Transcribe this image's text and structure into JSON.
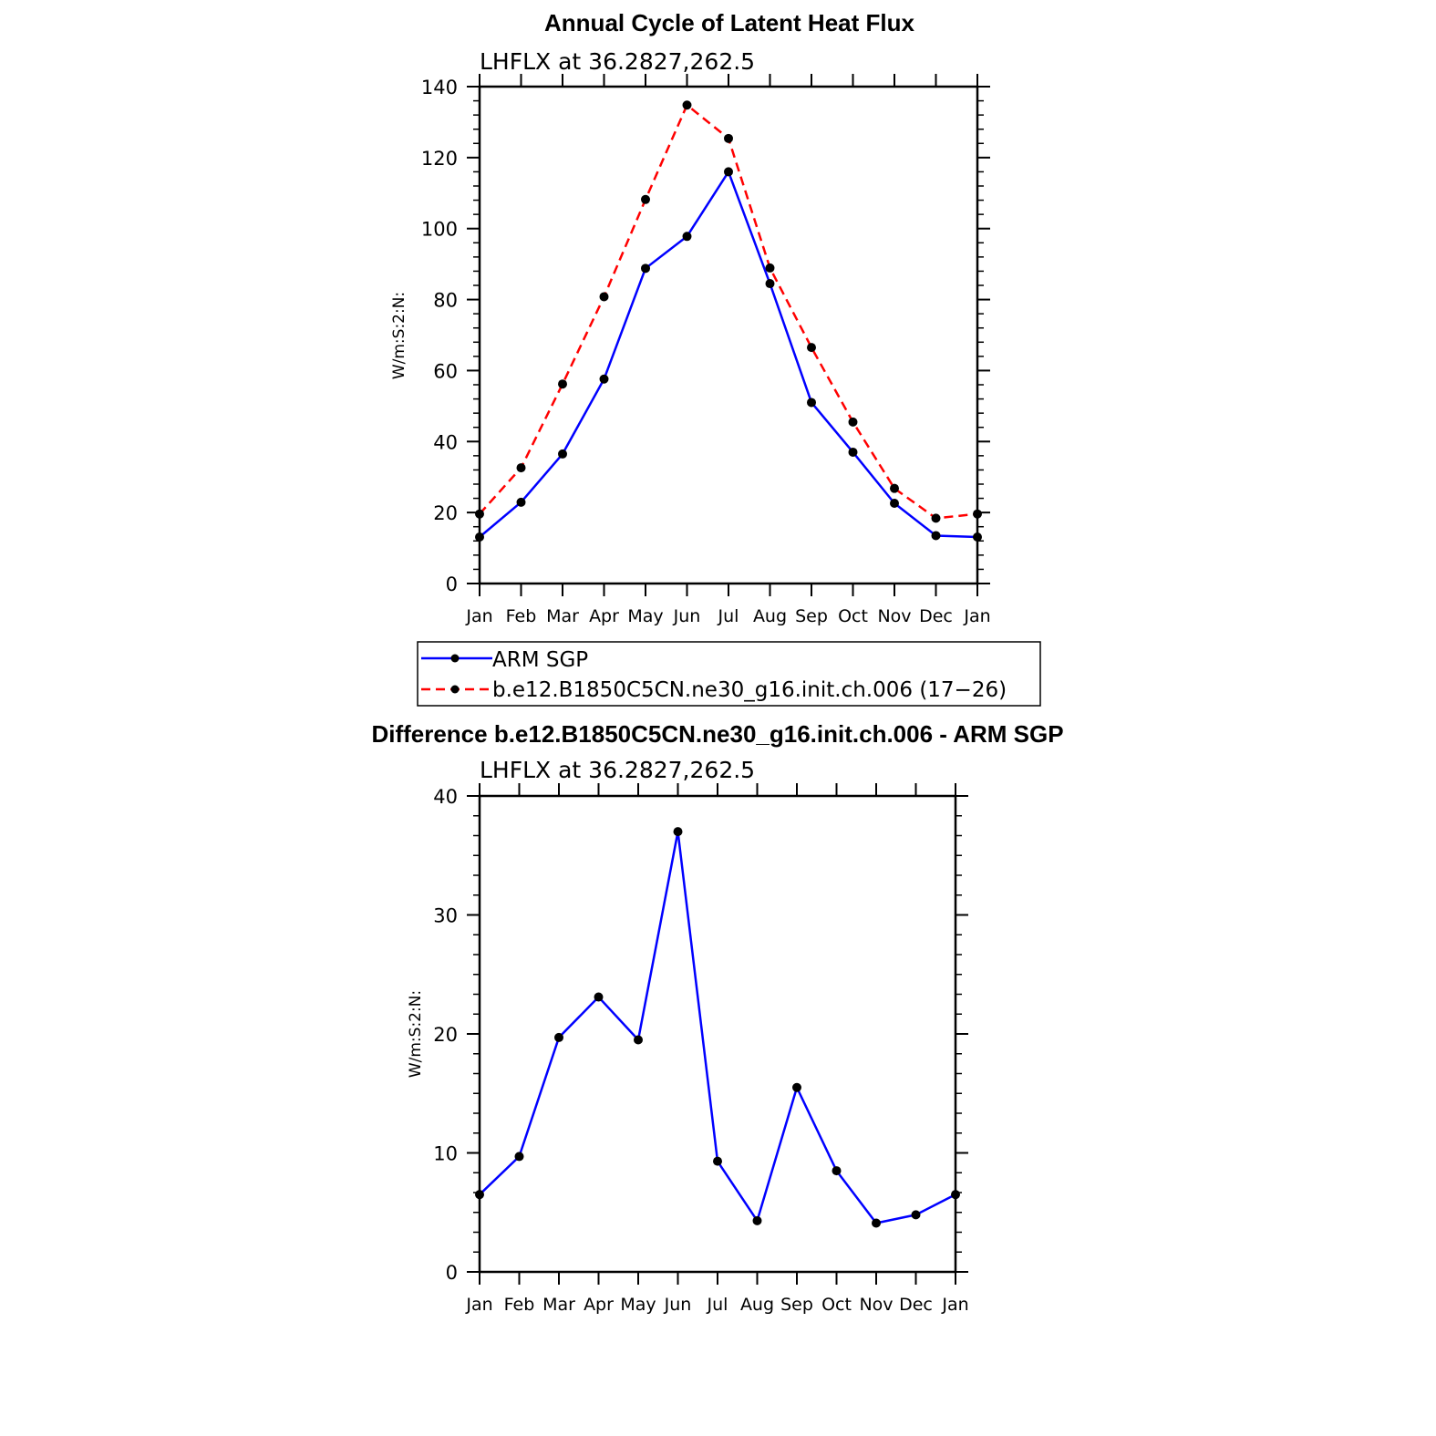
{
  "chart_data": [
    {
      "type": "line",
      "title": "Annual Cycle of Latent Heat Flux",
      "subtitle": "LHFLX at 36.2827,262.5",
      "ylabel": "W/m:S:2:N:",
      "xlabel": "",
      "categories": [
        "Jan",
        "Feb",
        "Mar",
        "Apr",
        "May",
        "Jun",
        "Jul",
        "Aug",
        "Sep",
        "Oct",
        "Nov",
        "Dec",
        "Jan"
      ],
      "ylim": [
        0,
        140
      ],
      "yticks": [
        0,
        20,
        40,
        60,
        80,
        100,
        120,
        140
      ],
      "ytick_labels": [
        "0",
        "20",
        "40",
        "60",
        "80",
        "100",
        "120",
        "140"
      ],
      "grid": false,
      "legend_placement": "below",
      "series": [
        {
          "name": "ARM SGP",
          "color": "#0000ff",
          "dash": "solid",
          "values": [
            13.1,
            22.9,
            36.5,
            57.6,
            88.8,
            97.8,
            116.0,
            84.5,
            51.0,
            37.0,
            22.6,
            13.5,
            13.1
          ]
        },
        {
          "name": "b.e12.B1850C5CN.ne30_g16.init.ch.006 (17−26)",
          "color": "#ff0000",
          "dash": "dashed",
          "values": [
            19.6,
            32.6,
            56.2,
            80.8,
            108.2,
            134.8,
            125.4,
            88.9,
            66.5,
            45.5,
            26.8,
            18.4,
            19.6
          ]
        }
      ]
    },
    {
      "type": "line",
      "title": "Difference b.e12.B1850C5CN.ne30_g16.init.ch.006 - ARM SGP",
      "subtitle": "LHFLX at 36.2827,262.5",
      "ylabel": "W/m:S:2:N:",
      "xlabel": "",
      "categories": [
        "Jan",
        "Feb",
        "Mar",
        "Apr",
        "May",
        "Jun",
        "Jul",
        "Aug",
        "Sep",
        "Oct",
        "Nov",
        "Dec",
        "Jan"
      ],
      "ylim": [
        0,
        40
      ],
      "yticks": [
        0,
        10,
        20,
        30,
        40
      ],
      "ytick_labels": [
        "0",
        "10",
        "20",
        "30",
        "40"
      ],
      "grid": false,
      "series": [
        {
          "color": "#0000ff",
          "dash": "solid",
          "values": [
            6.5,
            9.7,
            19.7,
            23.1,
            19.5,
            37.0,
            9.3,
            4.3,
            15.5,
            8.5,
            4.1,
            4.8,
            6.5
          ]
        }
      ]
    }
  ],
  "colors": {
    "axis": "#000000",
    "marker": "#000000"
  }
}
